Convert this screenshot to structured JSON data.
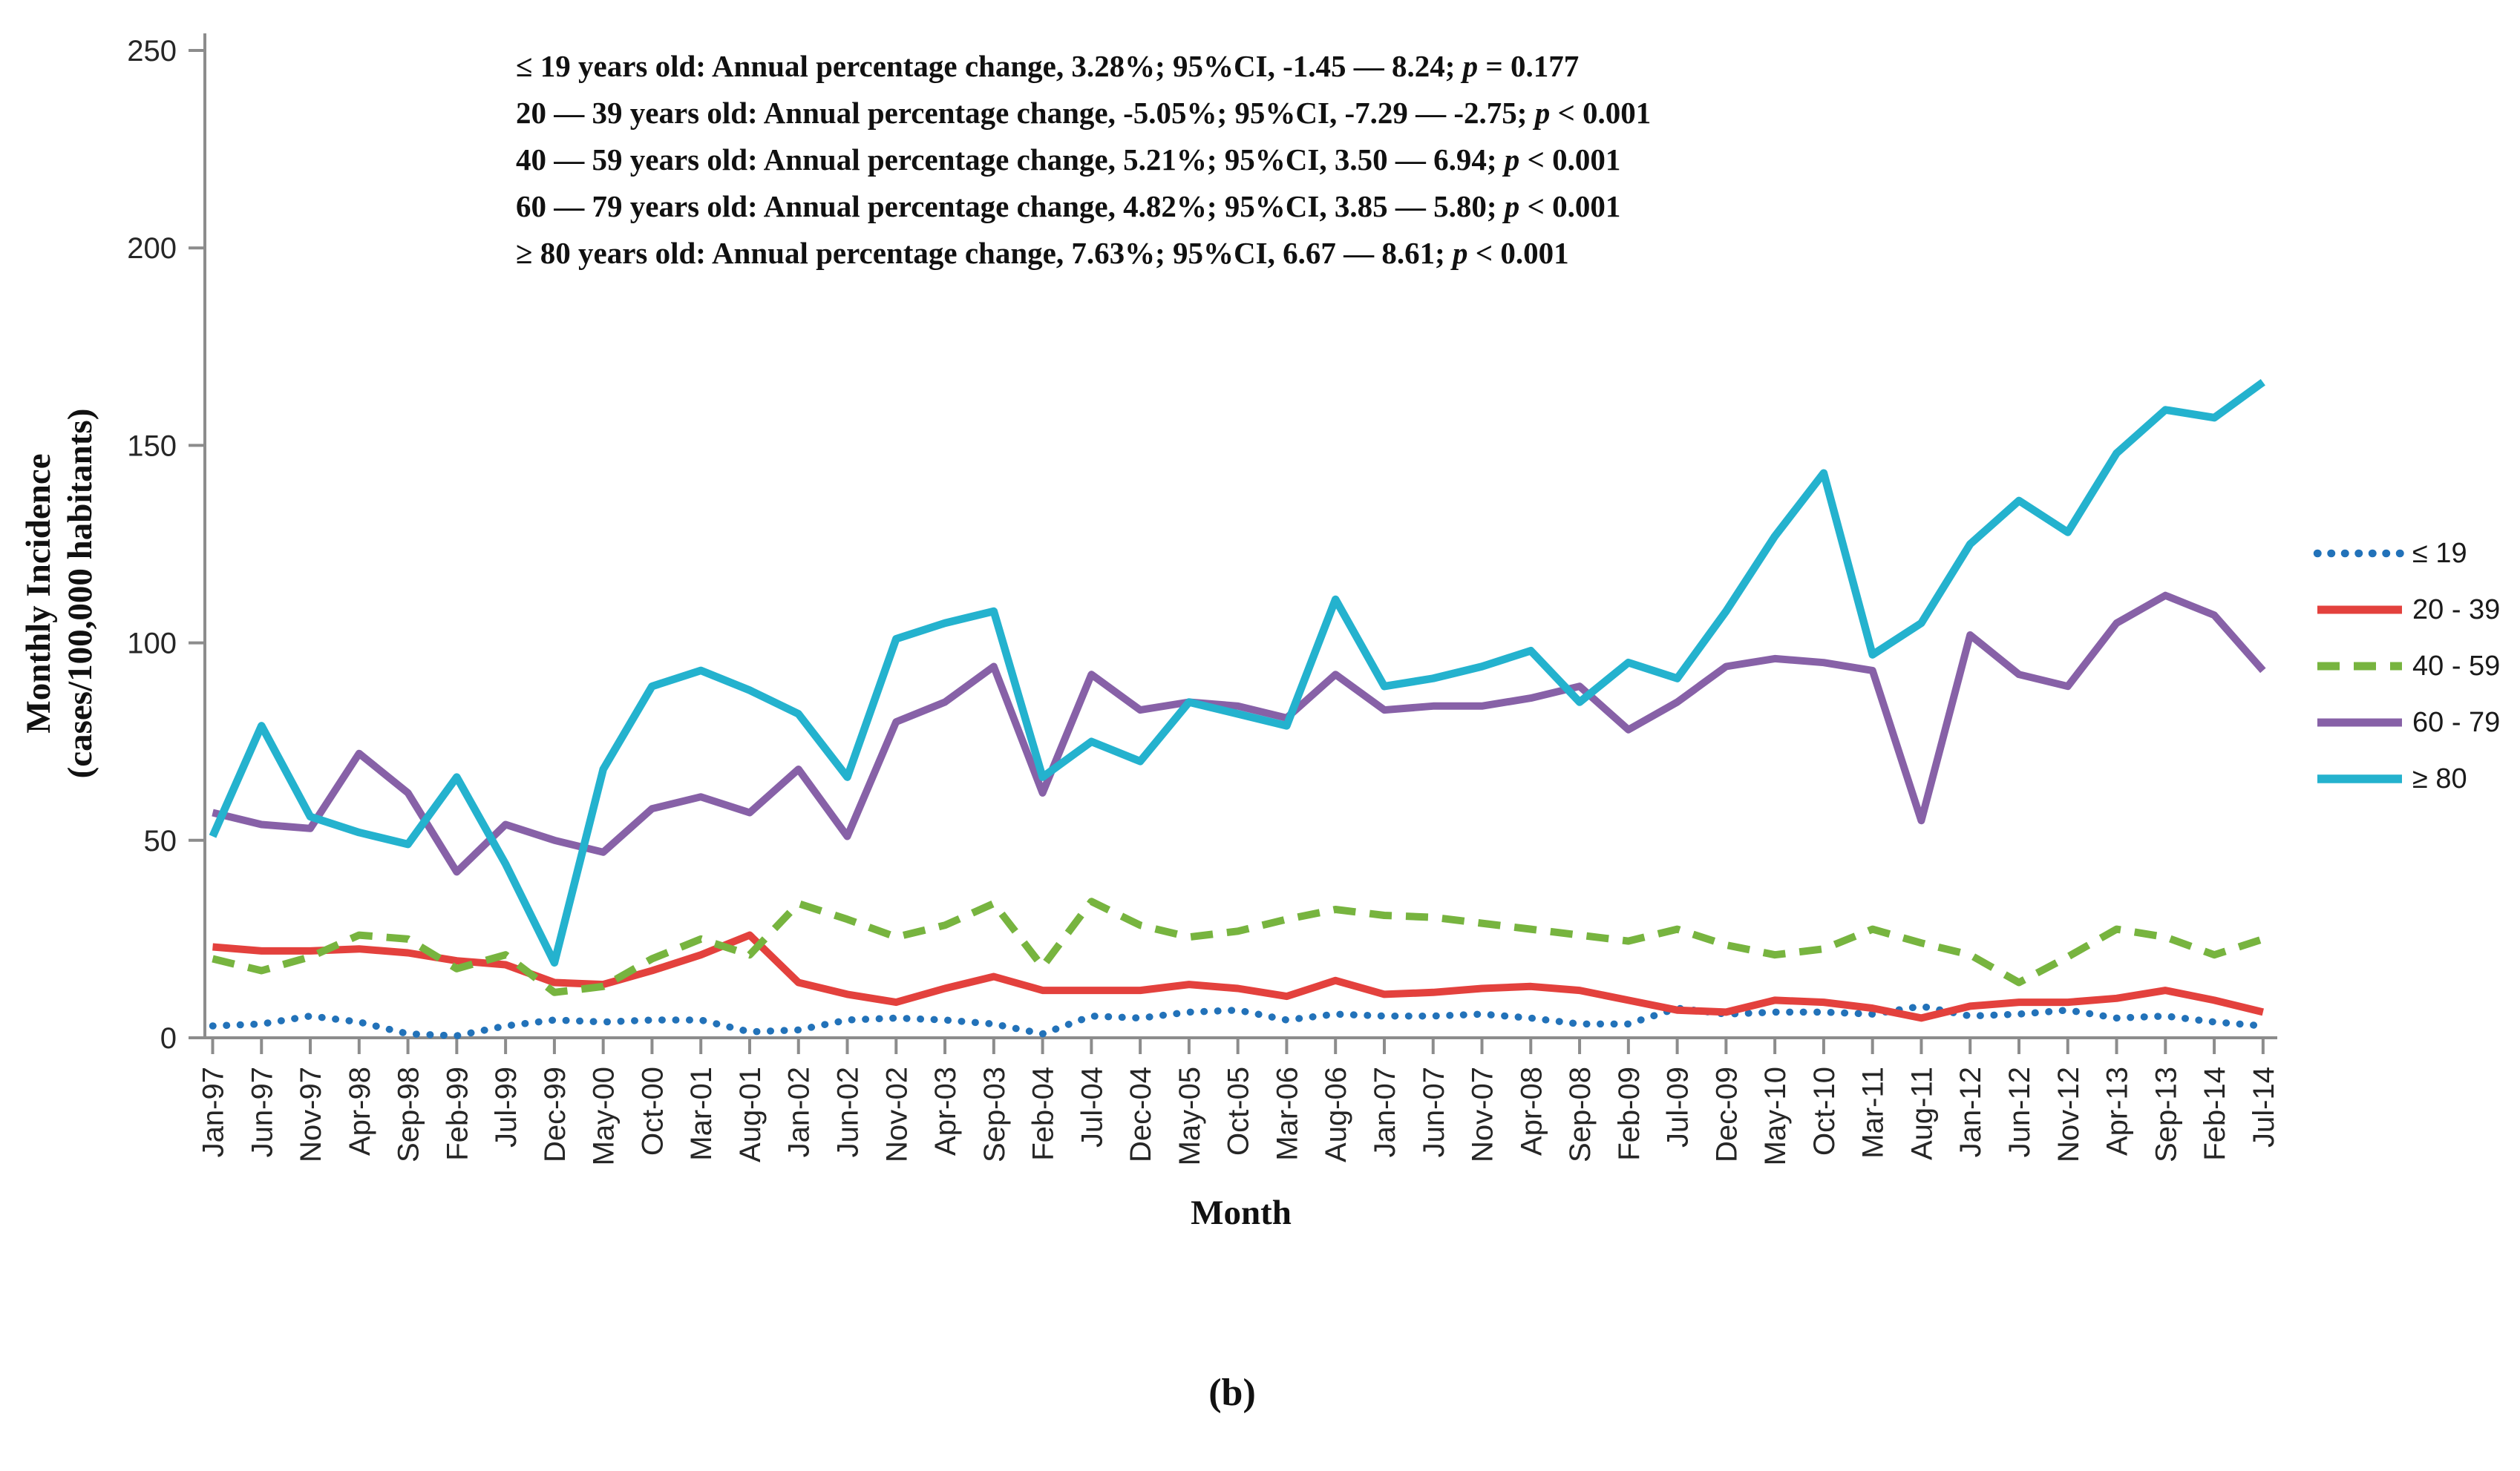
{
  "figure": {
    "caption": "(b)",
    "annotation": {
      "lines": [
        {
          "text": "≤ 19 years old: Annual percentage change, 3.28%; 95%CI, -1.45 — 8.24; ",
          "p": "p",
          "tail": " = 0.177"
        },
        {
          "text": "20 — 39 years old: Annual percentage change, -5.05%; 95%CI, -7.29 — -2.75; ",
          "p": "p",
          "tail": " < 0.001"
        },
        {
          "text": "40 — 59 years old: Annual percentage change, 5.21%; 95%CI, 3.50 — 6.94; ",
          "p": "p",
          "tail": " < 0.001"
        },
        {
          "text": "60 — 79 years old: Annual percentage change, 4.82%; 95%CI, 3.85 — 5.80; ",
          "p": "p",
          "tail": " < 0.001"
        },
        {
          "text": "≥ 80 years old: Annual percentage change, 7.63%; 95%CI, 6.67 — 8.61; ",
          "p": "p",
          "tail": " < 0.001"
        }
      ]
    },
    "axes": {
      "x_label": "Month",
      "y_label_line1": "Monthly Incidence",
      "y_label_line2": "(cases/100,000 habitants)",
      "axis_color": "#8c8c8c",
      "tick_text_color": "#262626"
    }
  },
  "chart_data": {
    "type": "line",
    "title": "",
    "xlabel": "Month",
    "ylabel": "Monthly Incidence (cases/100,000 habitants)",
    "ylim": [
      0,
      250
    ],
    "y_ticks": [
      0,
      50,
      100,
      150,
      200,
      250
    ],
    "grid": false,
    "legend_position": "right",
    "x": [
      "Jan-97",
      "Jun-97",
      "Nov-97",
      "Apr-98",
      "Sep-98",
      "Feb-99",
      "Jul-99",
      "Dec-99",
      "May-00",
      "Oct-00",
      "Mar-01",
      "Aug-01",
      "Jan-02",
      "Jun-02",
      "Nov-02",
      "Apr-03",
      "Sep-03",
      "Feb-04",
      "Jul-04",
      "Dec-04",
      "May-05",
      "Oct-05",
      "Mar-06",
      "Aug-06",
      "Jan-07",
      "Jun-07",
      "Nov-07",
      "Apr-08",
      "Sep-08",
      "Feb-09",
      "Jul-09",
      "Dec-09",
      "May-10",
      "Oct-10",
      "Mar-11",
      "Aug-11",
      "Jan-12",
      "Jun-12",
      "Nov-12",
      "Apr-13",
      "Sep-13",
      "Feb-14",
      "Jul-14"
    ],
    "series": [
      {
        "name": "≤ 19",
        "color": "#2272B9",
        "dash": "dotted",
        "width": 9.5,
        "values": [
          3,
          3.5,
          5.5,
          4,
          1,
          0.5,
          3,
          4.5,
          4,
          4.5,
          4.5,
          1.5,
          2,
          4.5,
          5,
          4.5,
          3.5,
          1,
          5.5,
          5,
          6.5,
          7,
          4.5,
          6,
          5.5,
          5.5,
          6,
          5,
          3.5,
          3.5,
          7.5,
          6,
          6.5,
          6.5,
          6,
          8,
          5.5,
          6,
          7,
          5,
          5.5,
          4,
          3
        ]
      },
      {
        "name": "20 - 39",
        "color": "#E3413D",
        "dash": "solid",
        "width": 10,
        "values": [
          23,
          22,
          22,
          22.5,
          21.5,
          19.5,
          18.5,
          14,
          13.5,
          17,
          21,
          26,
          14,
          11,
          9,
          12.5,
          15.5,
          12,
          12,
          12,
          13.5,
          12.5,
          10.5,
          14.5,
          11,
          11.5,
          12.5,
          13,
          12,
          9.5,
          7,
          6.5,
          9.5,
          9,
          7.5,
          5,
          8,
          9,
          9,
          10,
          12,
          9.5,
          6.5
        ]
      },
      {
        "name": "40 - 59",
        "color": "#77B43F",
        "dash": "dashed",
        "width": 10,
        "values": [
          20,
          17,
          20.5,
          26,
          25,
          17.5,
          21,
          11.5,
          13,
          20,
          25,
          21,
          34,
          30,
          25.5,
          28.5,
          34,
          18,
          34.5,
          28.5,
          25.5,
          27,
          30,
          32.5,
          31,
          30.5,
          29,
          27.5,
          26,
          24.5,
          27.5,
          23.5,
          21,
          22.5,
          27.5,
          24,
          21,
          14,
          20.5,
          27.5,
          25.5,
          21,
          25
        ]
      },
      {
        "name": "60 - 79",
        "color": "#8761A7",
        "dash": "solid",
        "width": 10,
        "values": [
          57,
          54,
          53,
          72,
          62,
          42,
          54,
          50,
          47,
          58,
          61,
          57,
          68,
          51,
          80,
          85,
          94,
          62,
          92,
          83,
          85,
          84,
          81,
          92,
          83,
          84,
          84,
          86,
          89,
          78,
          85,
          94,
          96,
          95,
          93,
          55,
          102,
          92,
          89,
          105,
          112,
          107,
          93
        ]
      },
      {
        "name": "≥ 80",
        "color": "#24B2CE",
        "dash": "solid",
        "width": 10.5,
        "values": [
          51,
          79,
          56,
          52,
          49,
          66,
          44,
          19,
          68,
          89,
          93,
          88,
          82,
          66,
          101,
          105,
          108,
          66,
          75,
          70,
          85,
          82,
          79,
          111,
          89,
          91,
          94,
          98,
          85,
          95,
          91,
          108,
          127,
          143,
          97,
          105,
          125,
          136,
          128,
          148,
          159,
          157,
          166
        ]
      }
    ]
  }
}
